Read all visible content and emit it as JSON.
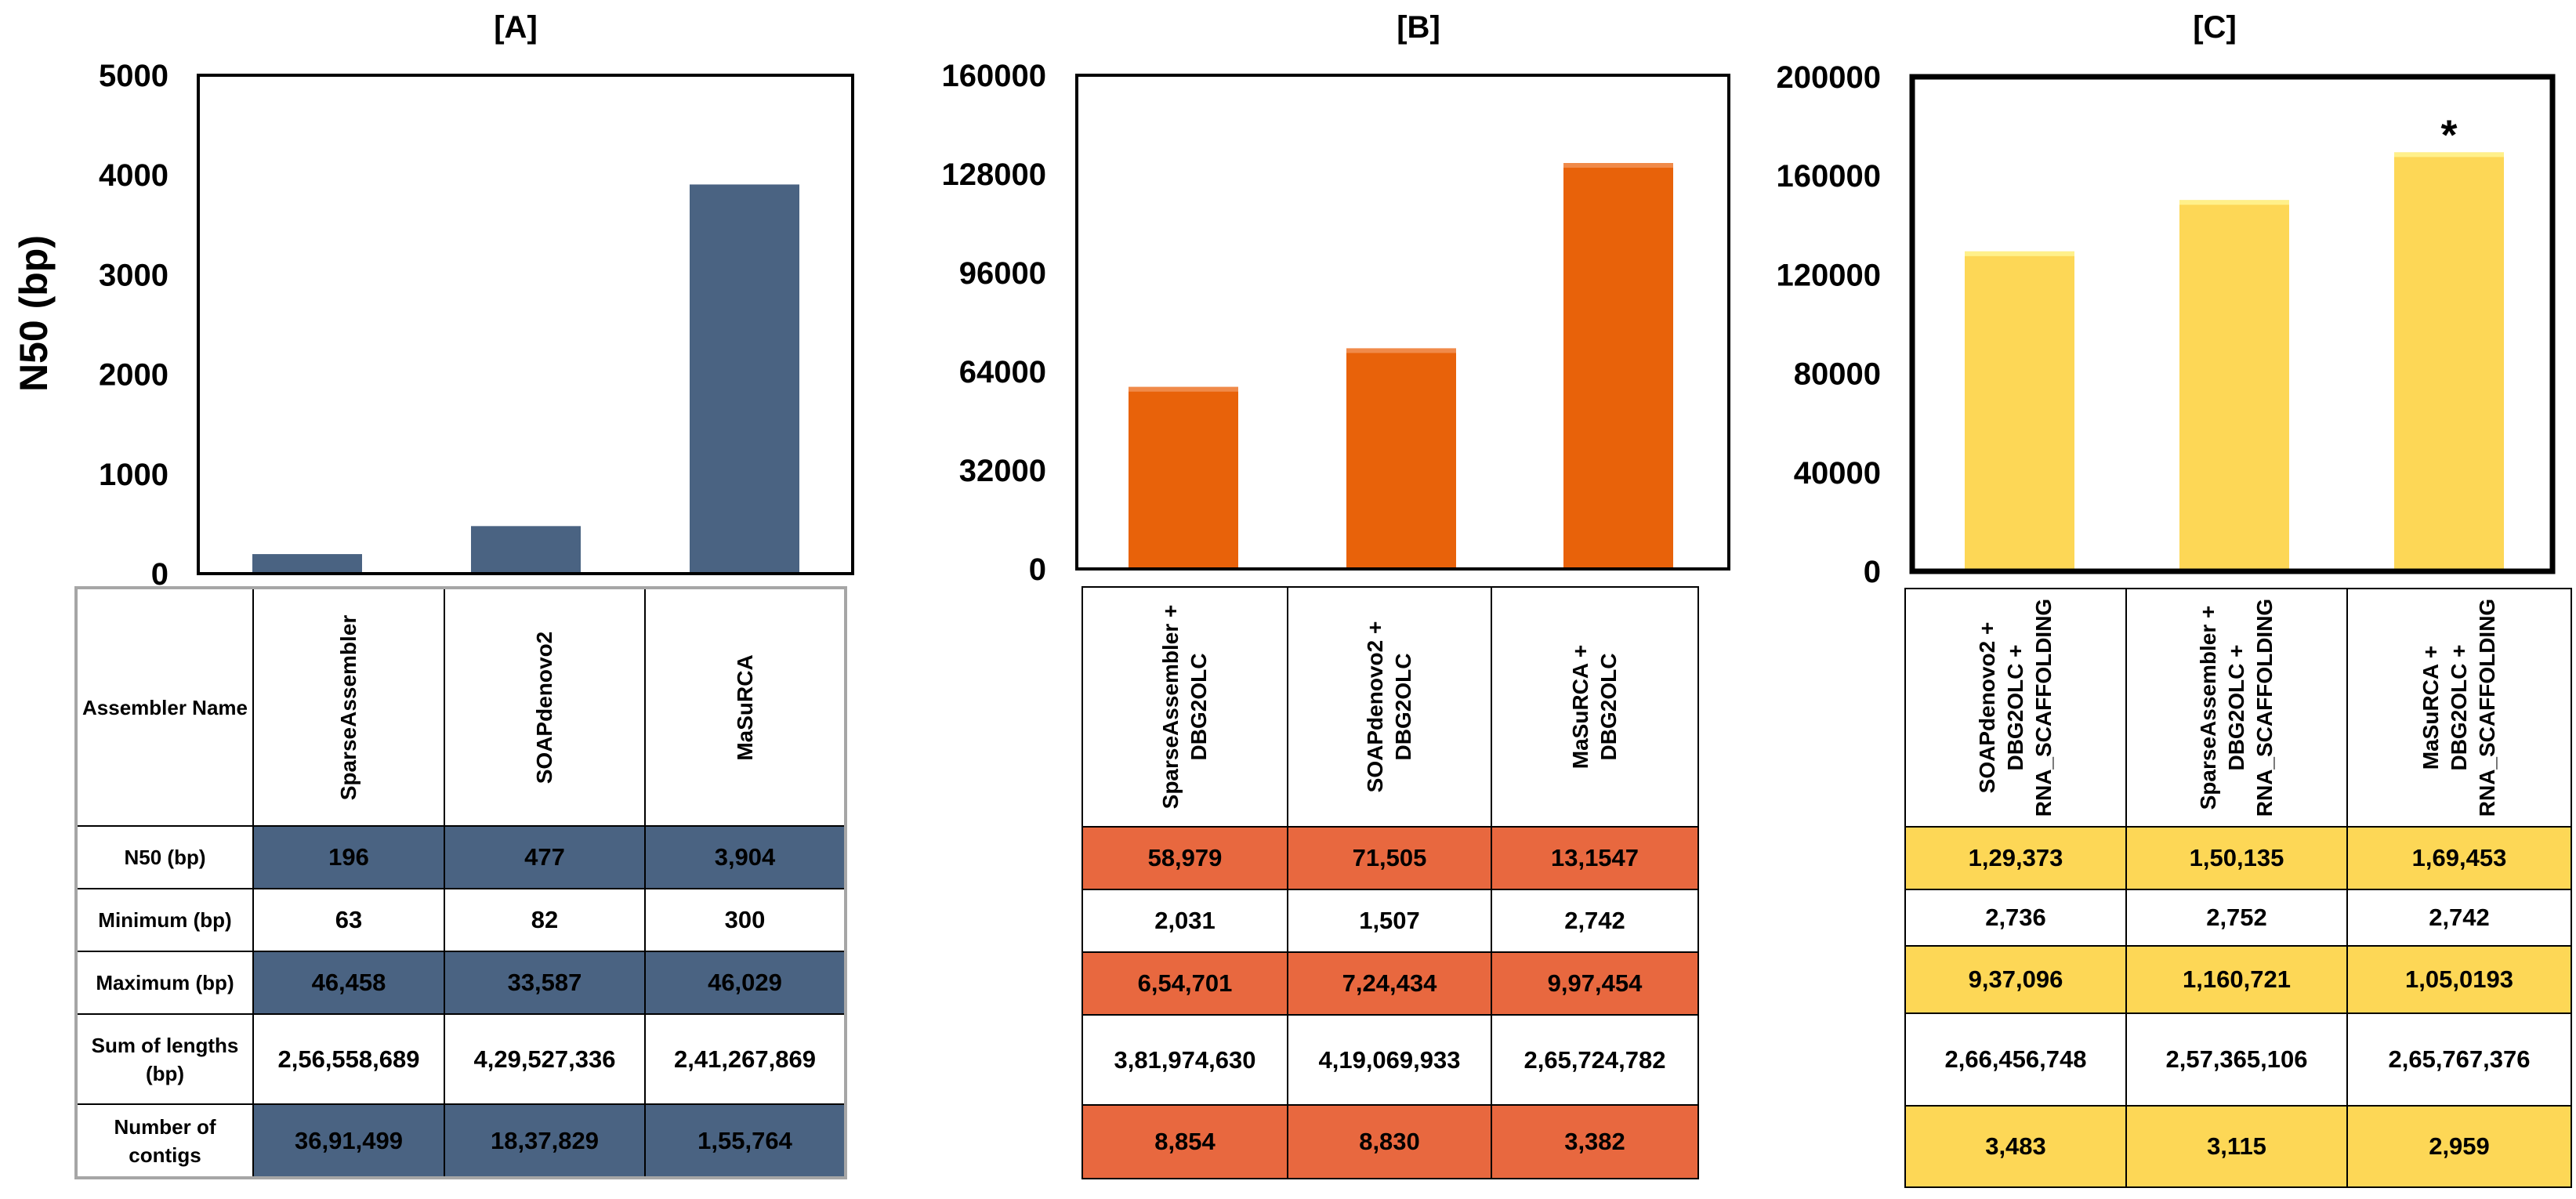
{
  "y_axis_label": "N50 (bp)",
  "row_labels": [
    "Assembler Name",
    "N50 (bp)",
    "Minimum (bp)",
    "Maximum (bp)",
    "Sum of lengths (bp)",
    "Number of contigs"
  ],
  "chart_data": [
    {
      "type": "bar",
      "title": "[A]",
      "ylabel": "N50 (bp)",
      "ylim": [
        0,
        5000
      ],
      "yticks": [
        "0",
        "1000",
        "2000",
        "3000",
        "4000",
        "5000"
      ],
      "categories": [
        "SparseAssembler",
        "SOAPdenovo2",
        "MaSuRCA"
      ],
      "values": [
        196,
        477,
        3904
      ],
      "color": "#4a6382"
    },
    {
      "type": "bar",
      "title": "[B]",
      "ylim": [
        0,
        160000
      ],
      "yticks": [
        "0",
        "32000",
        "64000",
        "96000",
        "128000",
        "160000"
      ],
      "categories": [
        "SparseAssembler + DBG2OLC",
        "SOAPdenovo2 + DBG2OLC",
        "MaSuRCA + DBG2OLC"
      ],
      "values": [
        58979,
        71505,
        131547
      ],
      "color": "#e8620a"
    },
    {
      "type": "bar",
      "title": "[C]",
      "ylim": [
        0,
        200000
      ],
      "yticks": [
        "0",
        "40000",
        "80000",
        "120000",
        "160000",
        "200000"
      ],
      "categories": [
        "SOAPdenovo2 + DBG2OLC + RNA_SCAFFOLDING",
        "SparseAssembler + DBG2OLC + RNA_SCAFFOLDING",
        "MaSuRCA + DBG2OLC + RNA_SCAFFOLDING"
      ],
      "values": [
        129373,
        150135,
        169453
      ],
      "color": "#fdd756",
      "annotation": "*",
      "annotation_target": "MaSuRCA + DBG2OLC + RNA_SCAFFOLDING"
    }
  ],
  "tables": {
    "A": {
      "header": [
        "SparseAssembler",
        "SOAPdenovo2",
        "MaSuRCA"
      ],
      "rows": [
        [
          "196",
          "477",
          "3,904"
        ],
        [
          "63",
          "82",
          "300"
        ],
        [
          "46,458",
          "33,587",
          "46,029"
        ],
        [
          "2,56,558,689",
          "4,29,527,336",
          "2,41,267,869"
        ],
        [
          "36,91,499",
          "18,37,829",
          "1,55,764"
        ]
      ]
    },
    "B": {
      "header": [
        "SparseAssembler +\nDBG2OLC",
        "SOAPdenovo2 +\nDBG2OLC",
        "MaSuRCA +\nDBG2OLC"
      ],
      "rows": [
        [
          "58,979",
          "71,505",
          "13,1547"
        ],
        [
          "2,031",
          "1,507",
          "2,742"
        ],
        [
          "6,54,701",
          "7,24,434",
          "9,97,454"
        ],
        [
          "3,81,974,630",
          "4,19,069,933",
          "2,65,724,782"
        ],
        [
          "8,854",
          "8,830",
          "3,382"
        ]
      ]
    },
    "C": {
      "header": [
        "SOAPdenovo2 +\nDBG2OLC +\nRNA_SCAFFOLDING",
        "SparseAssembler +\nDBG2OLC +\nRNA_SCAFFOLDING",
        "MaSuRCA +\nDBG2OLC +\nRNA_SCAFFOLDING"
      ],
      "rows": [
        [
          "1,29,373",
          "1,50,135",
          "1,69,453"
        ],
        [
          "2,736",
          "2,752",
          "2,742"
        ],
        [
          "9,37,096",
          "1,160,721",
          "1,05,0193"
        ],
        [
          "2,66,456,748",
          "2,57,365,106",
          "2,65,767,376"
        ],
        [
          "3,483",
          "3,115",
          "2,959"
        ]
      ]
    }
  },
  "colors": {
    "A_fill": "#4a6382",
    "B_fill": "#e8683f",
    "C_fill": "#fdd756",
    "white": "#ffffff"
  }
}
